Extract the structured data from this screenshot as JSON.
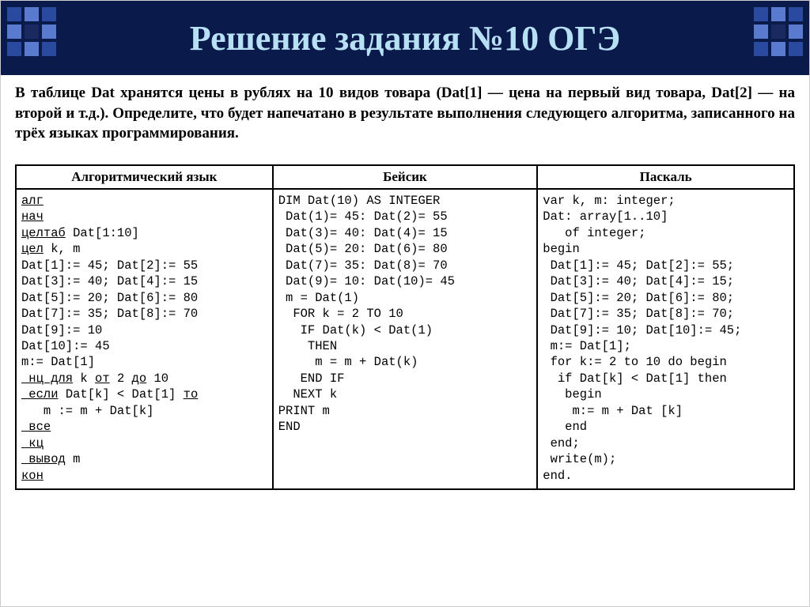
{
  "header": {
    "title": "Решение задания №10 ОГЭ",
    "bg_color": "#0a1a4a",
    "title_color": "#b8e0f5",
    "title_fontsize": 44,
    "deco_colors": [
      "#2a4aa0",
      "#5a7ad0",
      "#1a2a60"
    ]
  },
  "problem_text": "В таблице Dat хранятся цены в рублях на 10 видов товара (Dat[1] — цена на первый вид товара, Dat[2] — на второй и т.д.). Определите, что будет напечатано в результате выполнения следующего алгоритма, записанного на трёх языках программирования.",
  "table": {
    "headers": [
      "Алгоритмический язык",
      "Бейсик",
      "Паскаль"
    ],
    "col_widths": [
      "33%",
      "34%",
      "33%"
    ],
    "font_family": "Courier New",
    "fontsize": 15.5,
    "algo_lines": [
      {
        "t": "алг",
        "u": true
      },
      {
        "t": "нач",
        "u": true
      },
      {
        "t": " ",
        "u": false,
        "seg": [
          {
            "t": "целтаб",
            "u": true
          },
          {
            "t": " Dat[1:10]",
            "u": false
          }
        ]
      },
      {
        "t": " ",
        "u": false,
        "seg": [
          {
            "t": "цел",
            "u": true
          },
          {
            "t": " k, m",
            "u": false
          }
        ]
      },
      {
        "t": "Dat[1]:= 45; Dat[2]:= 55",
        "u": false
      },
      {
        "t": "Dat[3]:= 40; Dat[4]:= 15",
        "u": false
      },
      {
        "t": "Dat[5]:= 20; Dat[6]:= 80",
        "u": false
      },
      {
        "t": "Dat[7]:= 35; Dat[8]:= 70",
        "u": false
      },
      {
        "t": "Dat[9]:= 10",
        "u": false
      },
      {
        "t": "Dat[10]:= 45",
        "u": false
      },
      {
        "t": "m:= Dat[1]",
        "u": false
      },
      {
        "t": " ",
        "u": false,
        "seg": [
          {
            "t": " нц для",
            "u": true
          },
          {
            "t": " k ",
            "u": false
          },
          {
            "t": "от",
            "u": true
          },
          {
            "t": " 2 ",
            "u": false
          },
          {
            "t": "до",
            "u": true
          },
          {
            "t": " 10",
            "u": false
          }
        ]
      },
      {
        "t": " ",
        "u": false,
        "seg": [
          {
            "t": " если",
            "u": true
          },
          {
            "t": " Dat[k] < Dat[1] ",
            "u": false
          },
          {
            "t": "то",
            "u": true
          }
        ]
      },
      {
        "t": "   m := m + Dat[k]",
        "u": false
      },
      {
        "t": " ",
        "u": false,
        "seg": [
          {
            "t": " все",
            "u": true
          }
        ]
      },
      {
        "t": " ",
        "u": false,
        "seg": [
          {
            "t": " кц",
            "u": true
          }
        ]
      },
      {
        "t": " ",
        "u": false,
        "seg": [
          {
            "t": " вывод",
            "u": true
          },
          {
            "t": " m",
            "u": false
          }
        ]
      },
      {
        "t": "кон",
        "u": true
      }
    ],
    "basic_lines": [
      "DIM Dat(10) AS INTEGER",
      " Dat(1)= 45: Dat(2)= 55",
      " Dat(3)= 40: Dat(4)= 15",
      " Dat(5)= 20: Dat(6)= 80",
      " Dat(7)= 35: Dat(8)= 70",
      " Dat(9)= 10: Dat(10)= 45",
      " m = Dat(1)",
      "  FOR k = 2 TO 10",
      "   IF Dat(k) < Dat(1)",
      "    THEN",
      "     m = m + Dat(k)",
      "   END IF",
      "  NEXT k",
      "PRINT m",
      "END"
    ],
    "pascal_lines": [
      "var k, m: integer;",
      "Dat: array[1..10]",
      "   of integer;",
      "begin",
      " Dat[1]:= 45; Dat[2]:= 55;",
      " Dat[3]:= 40; Dat[4]:= 15;",
      " Dat[5]:= 20; Dat[6]:= 80;",
      " Dat[7]:= 35; Dat[8]:= 70;",
      " Dat[9]:= 10; Dat[10]:= 45;",
      " m:= Dat[1];",
      " for k:= 2 to 10 do begin",
      "  if Dat[k] < Dat[1] then",
      "   begin",
      "    m:= m + Dat [k]",
      "   end",
      " end;",
      " write(m);",
      "end."
    ]
  }
}
